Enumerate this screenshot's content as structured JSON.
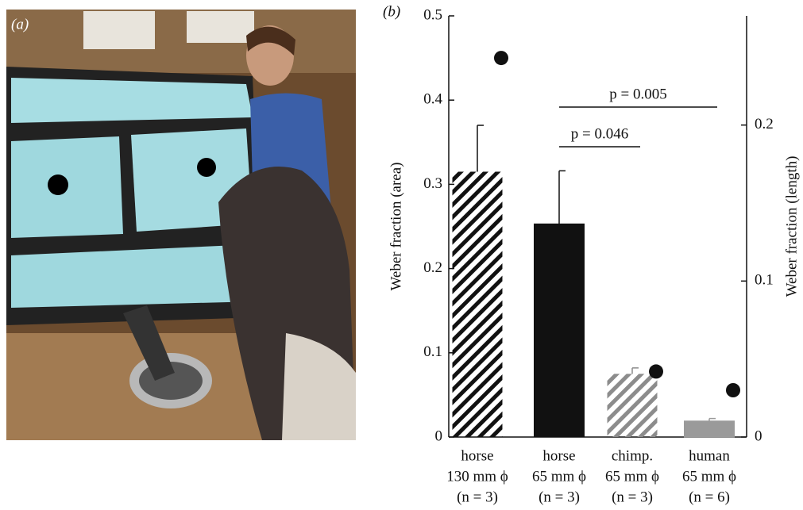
{
  "chart_data": {
    "type": "bar",
    "panel_labels": [
      "(a)",
      "(b)"
    ],
    "y_label": "Weber fraction (area)",
    "y2_label": "Weber fraction (length)",
    "categories": [
      [
        "horse",
        "130 mm ϕ",
        "(n = 3)"
      ],
      [
        "horse",
        "65 mm ϕ",
        "(n = 3)"
      ],
      [
        "chimp.",
        "65 mm ϕ",
        "(n = 3)"
      ],
      [
        "human",
        "65 mm ϕ",
        "(n = 6)"
      ]
    ],
    "values": [
      0.315,
      0.253,
      0.075,
      0.019
    ],
    "errors": [
      0.055,
      0.063,
      0.007,
      0.003
    ],
    "colors": [
      "#111111",
      "#111111",
      "#8c8c8c",
      "#9a9a9a"
    ],
    "hatch": [
      true,
      false,
      true,
      false
    ],
    "y2_values": [
      0.243,
      null,
      0.042,
      0.03
    ],
    "y2_color": "#111111",
    "ylim": [
      0,
      0.5
    ],
    "yticks": [
      0,
      0.1,
      0.2,
      0.3,
      0.4,
      0.5
    ],
    "y2lim": [
      0,
      0.27
    ],
    "y2ticks": [
      0,
      0.1,
      0.2
    ],
    "annotations": [
      "p = 0.046",
      "p = 0.005"
    ]
  }
}
